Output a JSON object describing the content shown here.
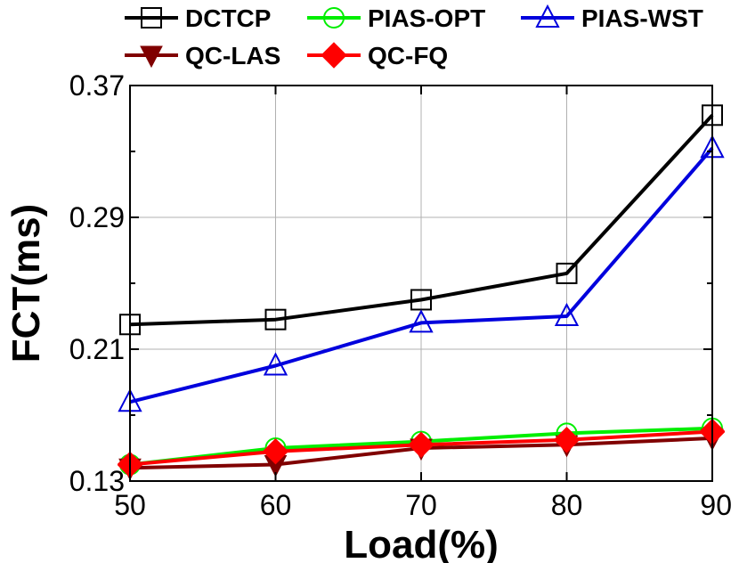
{
  "chart_data": {
    "type": "line",
    "title": "",
    "xlabel": "Load(%)",
    "ylabel": "FCT(ms)",
    "x": [
      50,
      60,
      70,
      80,
      90
    ],
    "xlim": [
      50,
      90
    ],
    "ylim": [
      0.13,
      0.37
    ],
    "xticks": [
      "50",
      "60",
      "70",
      "80",
      "90"
    ],
    "yticks": [
      "0.13",
      "0.21",
      "0.29",
      "0.37"
    ],
    "grid": true,
    "legend_position": "top",
    "series": [
      {
        "name": "DCTCP",
        "color": "#000000",
        "marker": "square-open",
        "values": [
          0.225,
          0.228,
          0.24,
          0.256,
          0.352
        ]
      },
      {
        "name": "PIAS-OPT",
        "color": "#00ee00",
        "marker": "circle-open",
        "values": [
          0.14,
          0.15,
          0.154,
          0.159,
          0.162
        ]
      },
      {
        "name": "PIAS-WST",
        "color": "#0000dd",
        "marker": "triangle-up-open",
        "values": [
          0.178,
          0.2,
          0.226,
          0.23,
          0.332
        ]
      },
      {
        "name": "QC-LAS",
        "color": "#800000",
        "marker": "triangle-down-filled",
        "values": [
          0.138,
          0.14,
          0.15,
          0.152,
          0.156
        ]
      },
      {
        "name": "QC-FQ",
        "color": "#ff0000",
        "marker": "diamond-filled",
        "values": [
          0.14,
          0.148,
          0.152,
          0.155,
          0.16
        ]
      }
    ]
  }
}
